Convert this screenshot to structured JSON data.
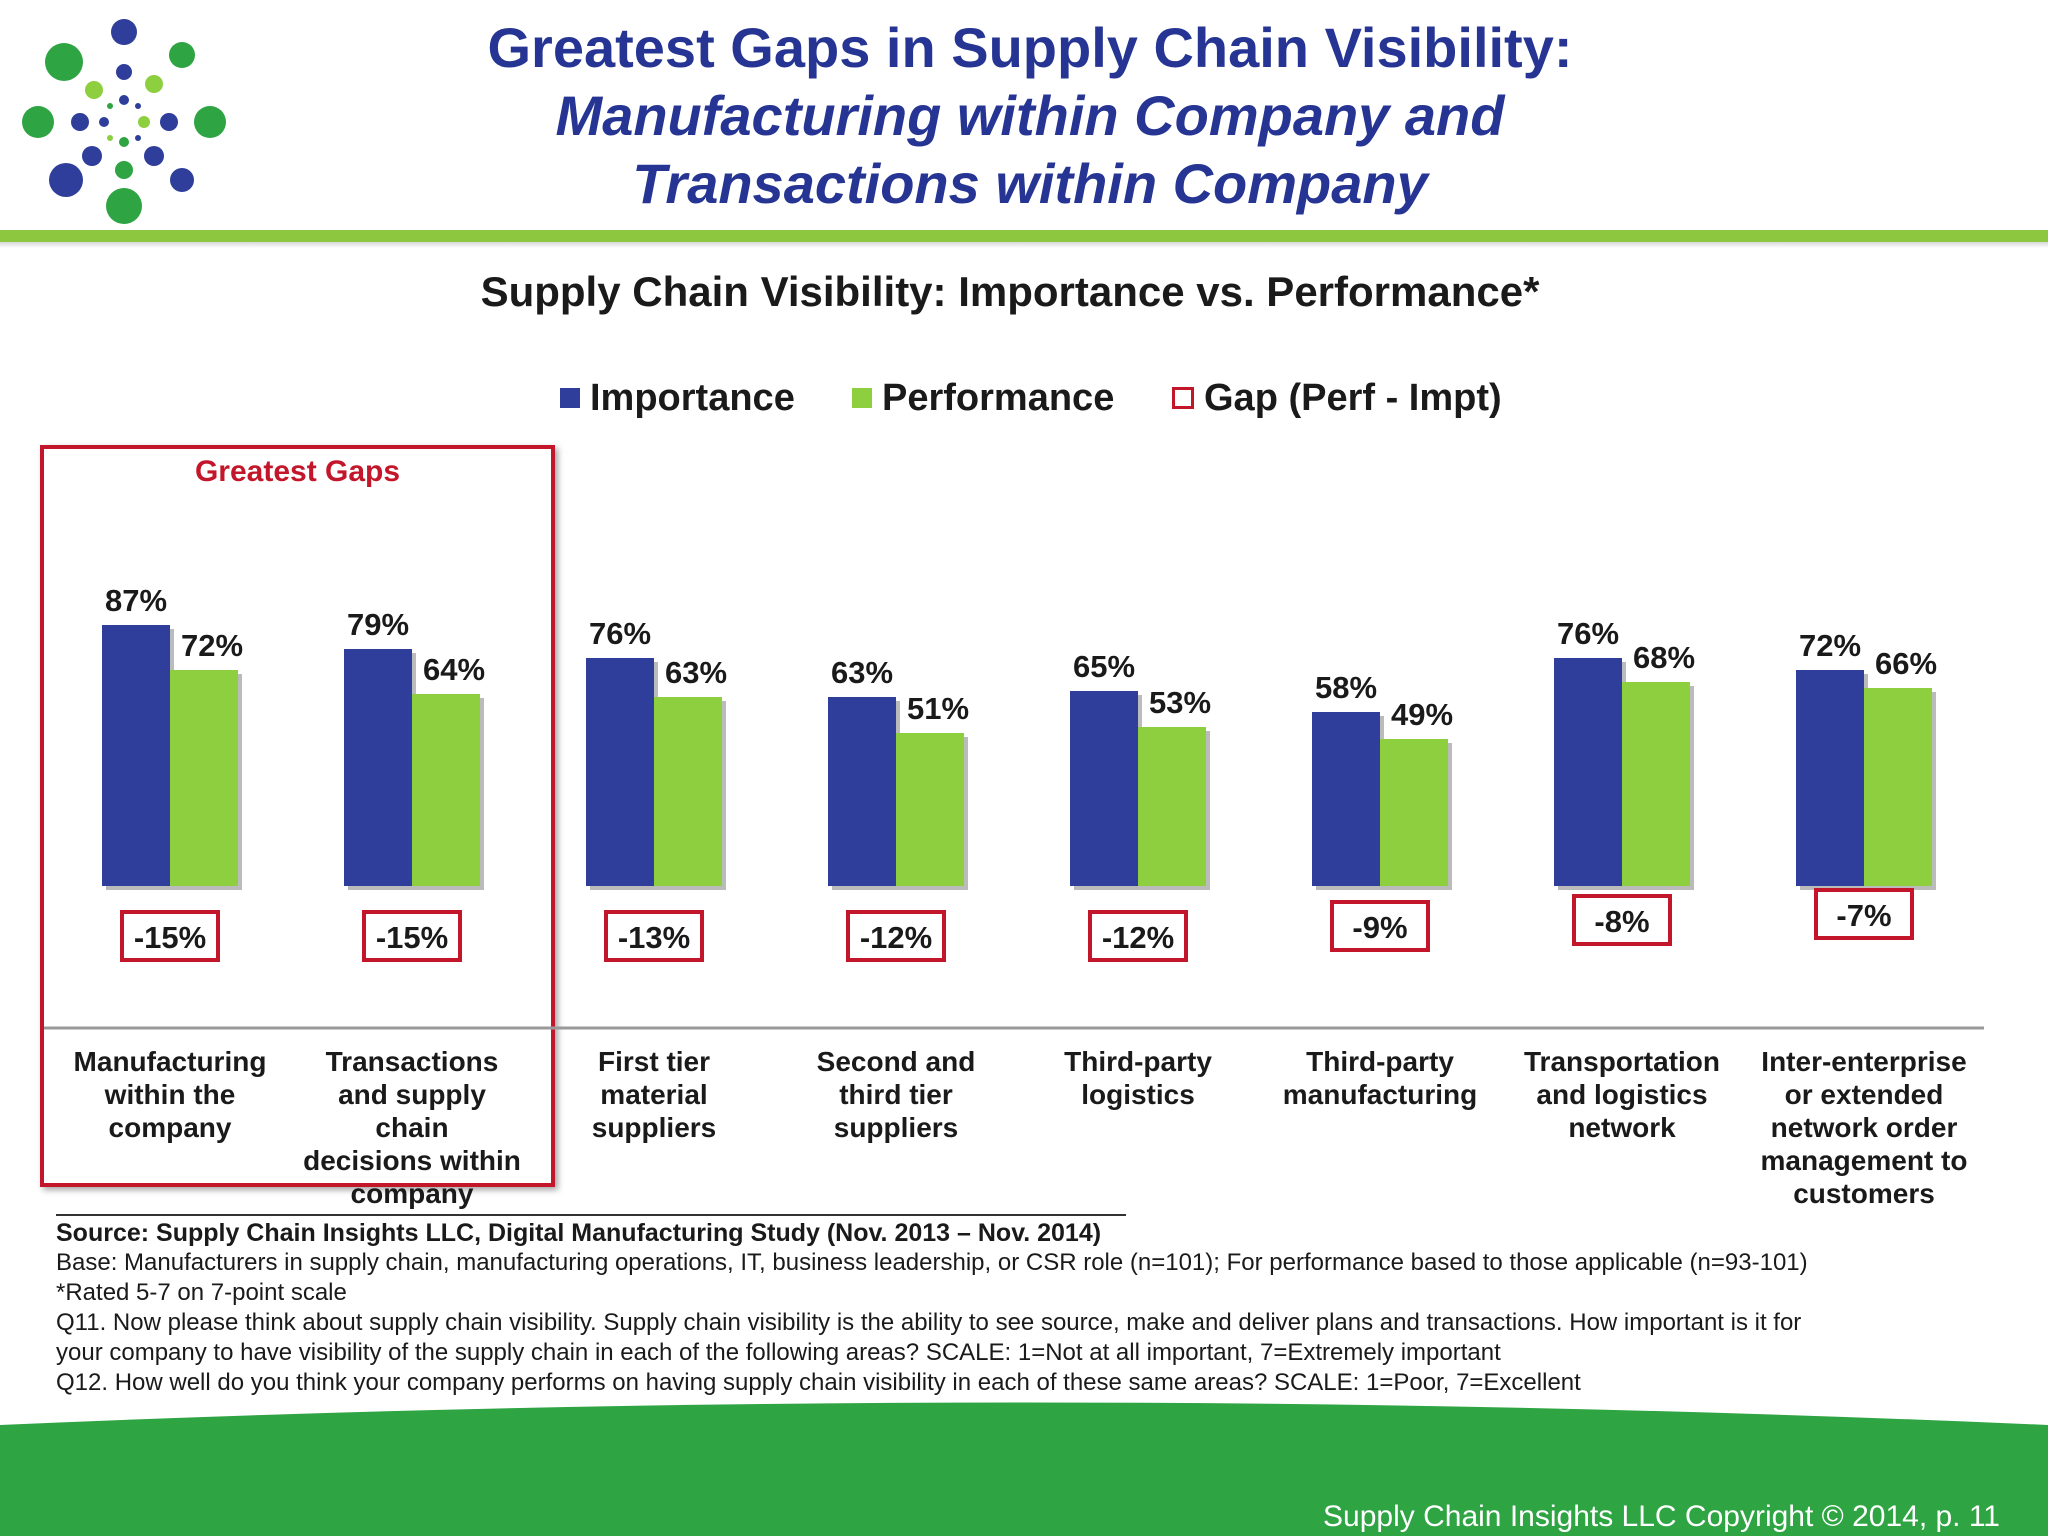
{
  "header": {
    "title_line1": "Greatest Gaps in Supply Chain Visibility:",
    "title_line2": "Manufacturing within Company and",
    "title_line3": "Transactions within Company"
  },
  "colors": {
    "importance": "#2e3e9a",
    "performance": "#8dcf3f",
    "gap_border": "#c3162a",
    "title": "#263593",
    "accent_green": "#8dc63f",
    "footer_green": "#2ea443"
  },
  "legend": {
    "importance": "Importance",
    "performance": "Performance",
    "gap": "Gap (Perf - Impt)"
  },
  "highlight": {
    "label": "Greatest Gaps"
  },
  "chart_data": {
    "type": "bar",
    "title": "Supply Chain Visibility: Importance vs. Performance*",
    "categories": [
      "Manufacturing within the company",
      "Transactions and supply chain decisions within company",
      "First tier material suppliers",
      "Second and third tier suppliers",
      "Third-party logistics",
      "Third-party manufacturing",
      "Transportation and logistics network",
      "Inter-enterprise or extended network order management to customers"
    ],
    "category_lines": [
      [
        "Manufacturing",
        "within the",
        "company"
      ],
      [
        "Transactions",
        "and supply chain",
        "decisions within",
        "company"
      ],
      [
        "First tier",
        "material",
        "suppliers"
      ],
      [
        "Second and",
        "third tier",
        "suppliers"
      ],
      [
        "Third-party",
        "logistics"
      ],
      [
        "Third-party",
        "manufacturing"
      ],
      [
        "Transportation",
        "and logistics",
        "network"
      ],
      [
        "Inter-enterprise",
        "or extended",
        "network order",
        "management to",
        "customers"
      ]
    ],
    "series": [
      {
        "name": "Importance",
        "values": [
          87,
          79,
          76,
          63,
          65,
          58,
          76,
          72
        ],
        "labels": [
          "87%",
          "79%",
          "76%",
          "63%",
          "65%",
          "58%",
          "76%",
          "72%"
        ]
      },
      {
        "name": "Performance",
        "values": [
          72,
          64,
          63,
          51,
          53,
          49,
          68,
          66
        ],
        "labels": [
          "72%",
          "64%",
          "63%",
          "51%",
          "53%",
          "49%",
          "68%",
          "66%"
        ]
      },
      {
        "name": "Gap (Perf - Impt)",
        "values": [
          -15,
          -15,
          -13,
          -12,
          -12,
          -9,
          -8,
          -7
        ],
        "labels": [
          "-15%",
          "-15%",
          "-13%",
          "-12%",
          "-12%",
          "-9%",
          "-8%",
          "-7%"
        ]
      }
    ],
    "legend_position": "top",
    "grid": false
  },
  "source": {
    "line1": "Source:  Supply Chain Insights LLC, Digital Manufacturing Study (Nov. 2013 – Nov. 2014)",
    "line2": "Base: Manufacturers in supply chain, manufacturing operations, IT, business leadership, or CSR role (n=101); For performance based to those applicable (n=93-101)",
    "line3": "*Rated 5-7 on 7-point scale",
    "line4": "Q11. Now please think about supply chain visibility.  Supply chain visibility is the ability to see source, make and deliver plans and transactions. How important is it for",
    "line5": "your company to have visibility of the supply chain in each of the following areas? SCALE: 1=Not at all important, 7=Extremely important",
    "line6": "Q12. How well do you think your company performs on having supply chain visibility in each of these same areas? SCALE: 1=Poor, 7=Excellent"
  },
  "footer": {
    "copyright": "Supply Chain Insights LLC Copyright © 2014, p. 11"
  }
}
